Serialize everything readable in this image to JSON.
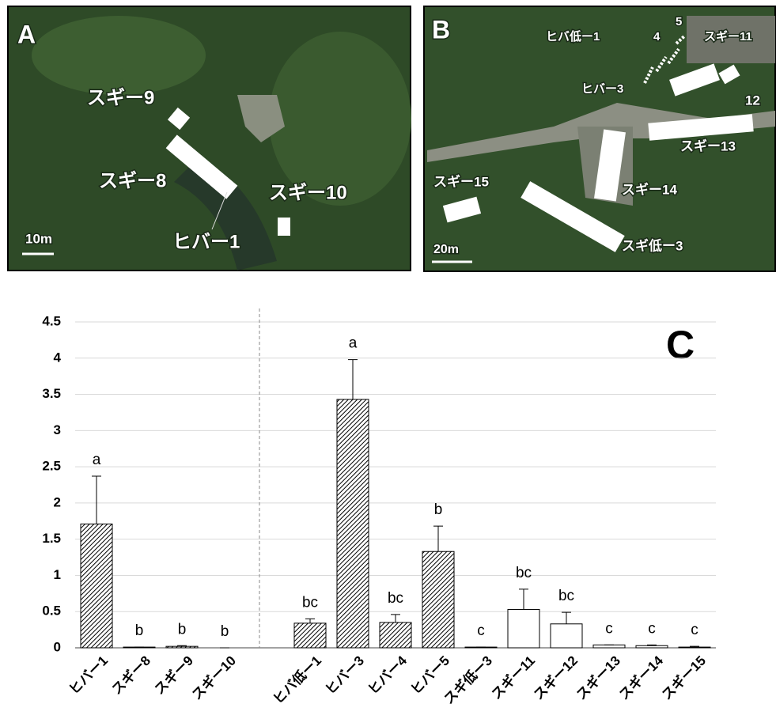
{
  "panels": {
    "a": {
      "letter": "A",
      "labels": [
        "スギー9",
        "スギー8",
        "ヒバー1",
        "スギー10"
      ],
      "scale": "10m"
    },
    "b": {
      "letter": "B",
      "labels": [
        "ヒバ低ー1",
        "4",
        "5",
        "スギー11",
        "ヒバー3",
        "12",
        "スギー13",
        "スギー14",
        "スギー15",
        "スギ低ー3"
      ],
      "scale": "20m"
    }
  },
  "chart_data": {
    "type": "bar",
    "panel_label": "C",
    "categories": [
      "ヒバー1",
      "スギー8",
      "スギー9",
      "スギー10",
      null,
      "ヒバ低ー1",
      "ヒバー3",
      "ヒバー4",
      "ヒバー5",
      "スギ低ー3",
      "スギー11",
      "スギー12",
      "スギー13",
      "スギー14",
      "スギー15"
    ],
    "values": [
      1.71,
      0.01,
      0.02,
      0,
      null,
      0.34,
      3.43,
      0.35,
      1.33,
      0.01,
      0.53,
      0.33,
      0.04,
      0.03,
      0.01
    ],
    "errors": [
      0.66,
      0,
      0.01,
      0,
      null,
      0.06,
      0.55,
      0.11,
      0.35,
      0,
      0.28,
      0.16,
      0,
      0.01,
      0.01
    ],
    "annotations": [
      "a",
      "b",
      "b",
      "b",
      null,
      "bc",
      "a",
      "bc",
      "b",
      "c",
      "bc",
      "bc",
      "c",
      "c",
      "c"
    ],
    "fills": [
      "hatch",
      "hatch",
      "hatch",
      "hatch",
      null,
      "hatch",
      "hatch",
      "hatch",
      "hatch",
      "white",
      "white",
      "white",
      "white",
      "white",
      "white"
    ],
    "ylim": [
      0,
      4.5
    ],
    "yticks": [
      0,
      0.5,
      1,
      1.5,
      2,
      2.5,
      3,
      3.5,
      4,
      4.5
    ],
    "grid": true
  }
}
